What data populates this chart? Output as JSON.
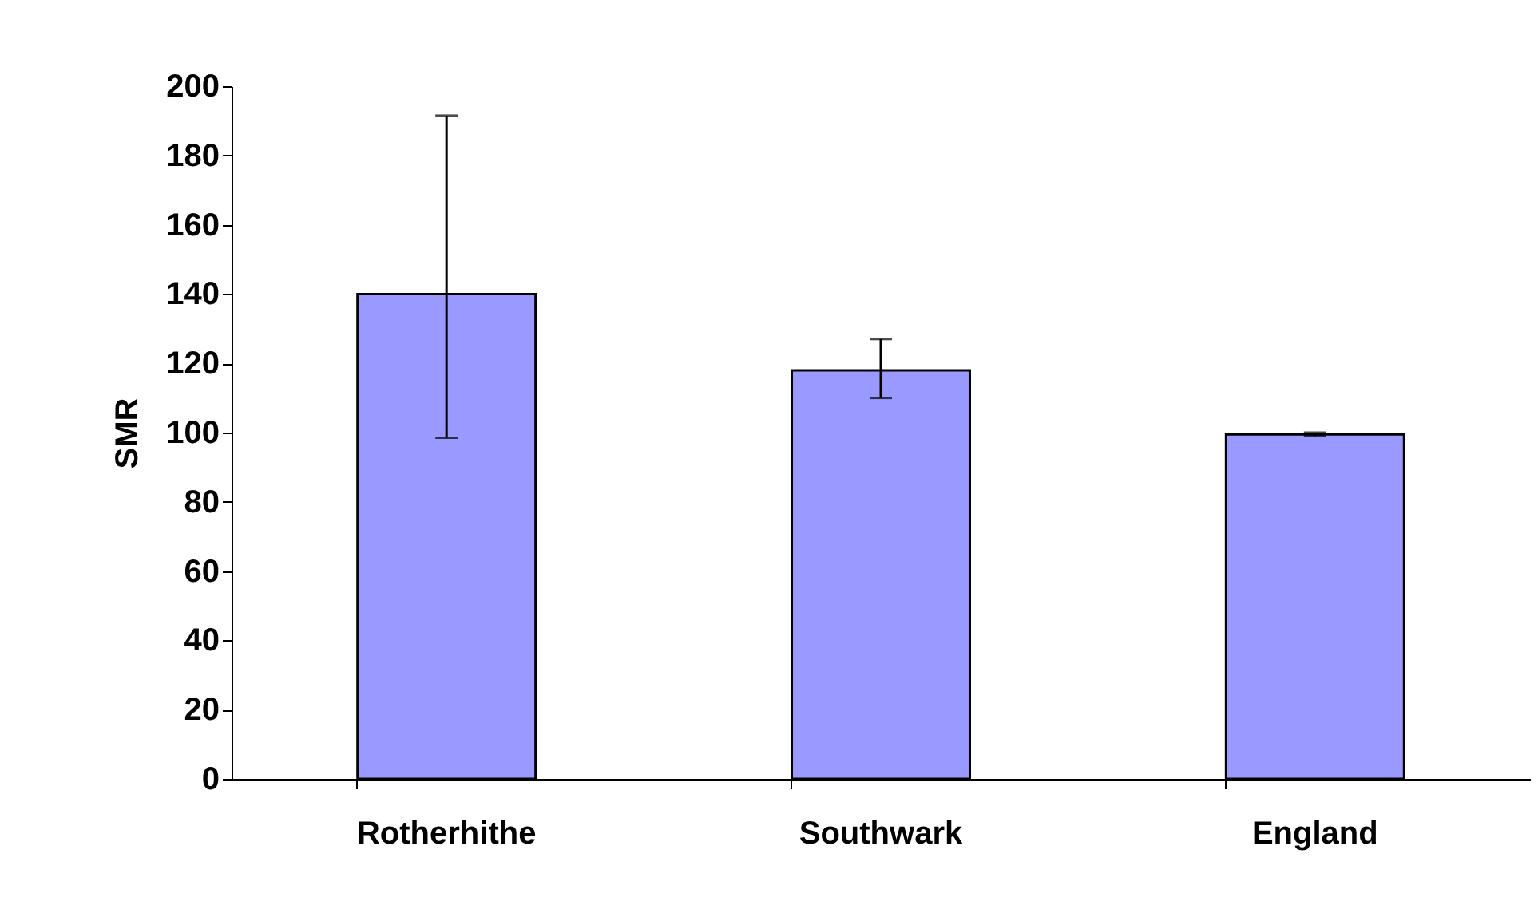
{
  "chart_data": {
    "type": "bar",
    "ylabel": "SMR",
    "categories": [
      "Rotherhithe",
      "Southwark",
      "England"
    ],
    "values": [
      140,
      118,
      99.5
    ],
    "errors": [
      [
        98.5,
        191.5
      ],
      [
        110,
        127
      ],
      [
        99,
        100
      ]
    ],
    "color": "#9999ff",
    "ylim": [
      0,
      200
    ],
    "yticks": [
      0,
      20,
      40,
      60,
      80,
      100,
      120,
      140,
      160,
      180,
      200
    ],
    "grid": false
  }
}
